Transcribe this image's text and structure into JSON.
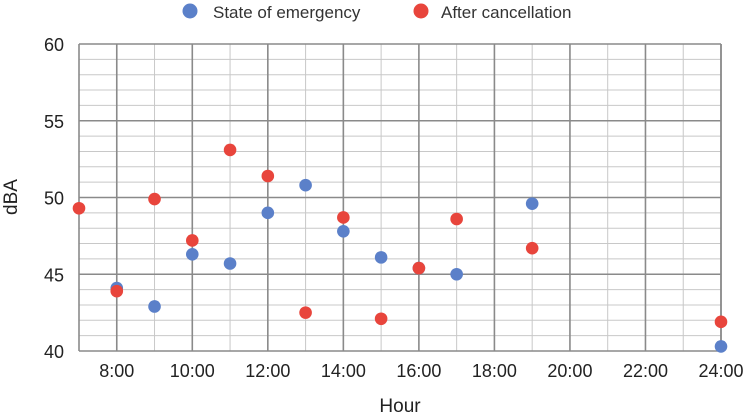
{
  "chart_data": {
    "type": "scatter",
    "xlabel": "Hour",
    "ylabel": "dBA",
    "xlim": [
      7,
      24
    ],
    "ylim": [
      40,
      60
    ],
    "x_ticks": [
      8,
      10,
      12,
      14,
      16,
      18,
      20,
      22,
      24
    ],
    "x_tick_labels": [
      "8:00",
      "10:00",
      "12:00",
      "14:00",
      "16:00",
      "18:00",
      "20:00",
      "22:00",
      "24:00"
    ],
    "y_ticks": [
      40,
      45,
      50,
      55,
      60
    ],
    "y_tick_labels": [
      "40",
      "45",
      "50",
      "55",
      "60"
    ],
    "grid": true,
    "legend_position": "top-center",
    "series": [
      {
        "name": "State of emergency",
        "color": "#5B80C9",
        "points": [
          {
            "x": 8,
            "y": 44.1
          },
          {
            "x": 9,
            "y": 42.9
          },
          {
            "x": 10,
            "y": 46.3
          },
          {
            "x": 11,
            "y": 45.7
          },
          {
            "x": 12,
            "y": 49.0
          },
          {
            "x": 13,
            "y": 50.8
          },
          {
            "x": 14,
            "y": 47.8
          },
          {
            "x": 15,
            "y": 46.1
          },
          {
            "x": 16,
            "y": 45.4
          },
          {
            "x": 17,
            "y": 45.0
          },
          {
            "x": 19,
            "y": 49.6
          },
          {
            "x": 24,
            "y": 40.3
          }
        ]
      },
      {
        "name": "After cancellation",
        "color": "#E8453C",
        "points": [
          {
            "x": 7,
            "y": 49.3
          },
          {
            "x": 8,
            "y": 43.9
          },
          {
            "x": 9,
            "y": 49.9
          },
          {
            "x": 10,
            "y": 47.2
          },
          {
            "x": 11,
            "y": 53.1
          },
          {
            "x": 12,
            "y": 51.4
          },
          {
            "x": 13,
            "y": 42.5
          },
          {
            "x": 14,
            "y": 48.7
          },
          {
            "x": 15,
            "y": 42.1
          },
          {
            "x": 16,
            "y": 45.4
          },
          {
            "x": 17,
            "y": 48.6
          },
          {
            "x": 19,
            "y": 46.7
          },
          {
            "x": 24,
            "y": 41.9
          }
        ]
      }
    ]
  }
}
